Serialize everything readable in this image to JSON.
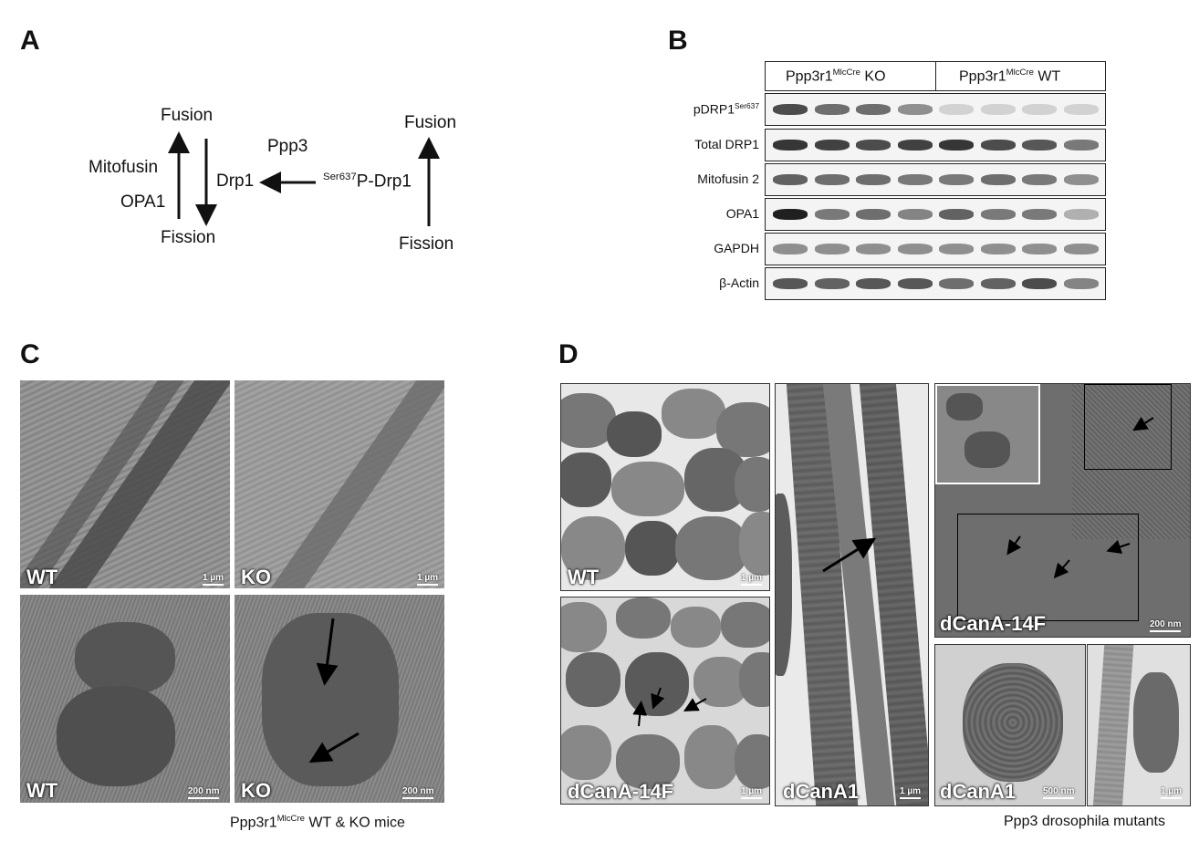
{
  "panels": {
    "a": "A",
    "b": "B",
    "c": "C",
    "d": "D"
  },
  "diagram_a": {
    "left_fusion": "Fusion",
    "left_fission": "Fission",
    "mitofusin": "Mitofusin",
    "opa1": "OPA1",
    "ppp3": "Ppp3",
    "drp1": "Drp1",
    "pdrp1_sup": "Ser637",
    "pdrp1_text": "P-Drp1",
    "right_fusion": "Fusion",
    "right_fission": "Fission"
  },
  "blot_b": {
    "group_ko_base": "Ppp3r1",
    "group_ko_sup": "MlcCre",
    "group_ko_suffix": " KO",
    "group_wt_base": "Ppp3r1",
    "group_wt_sup": "MlcCre",
    "group_wt_suffix": " WT",
    "rows": [
      {
        "base": "pDRP1",
        "sup": "Ser637"
      },
      {
        "base": "Total DRP1",
        "sup": ""
      },
      {
        "base": "Mitofusin 2",
        "sup": ""
      },
      {
        "base": "OPA1",
        "sup": ""
      },
      {
        "base": "GAPDH",
        "sup": ""
      },
      {
        "base": "β-Actin",
        "sup": ""
      }
    ]
  },
  "panel_c": {
    "labels": [
      "WT",
      "KO",
      "WT",
      "KO"
    ],
    "scales": [
      "1 µm",
      "1 µm",
      "200 nm",
      "200 nm"
    ],
    "caption_base": "Ppp3r1",
    "caption_sup": "MlcCre",
    "caption_suffix": " WT & KO mice"
  },
  "panel_d": {
    "labels": [
      "WT",
      "dCanA-14F",
      "dCanA1",
      "dCanA-14F",
      "dCanA1"
    ],
    "scales": [
      "1 µm",
      "1 µm",
      "1 µm",
      "200 nm",
      "500 nm",
      "1 µm"
    ],
    "caption": "Ppp3 drosophila mutants"
  }
}
